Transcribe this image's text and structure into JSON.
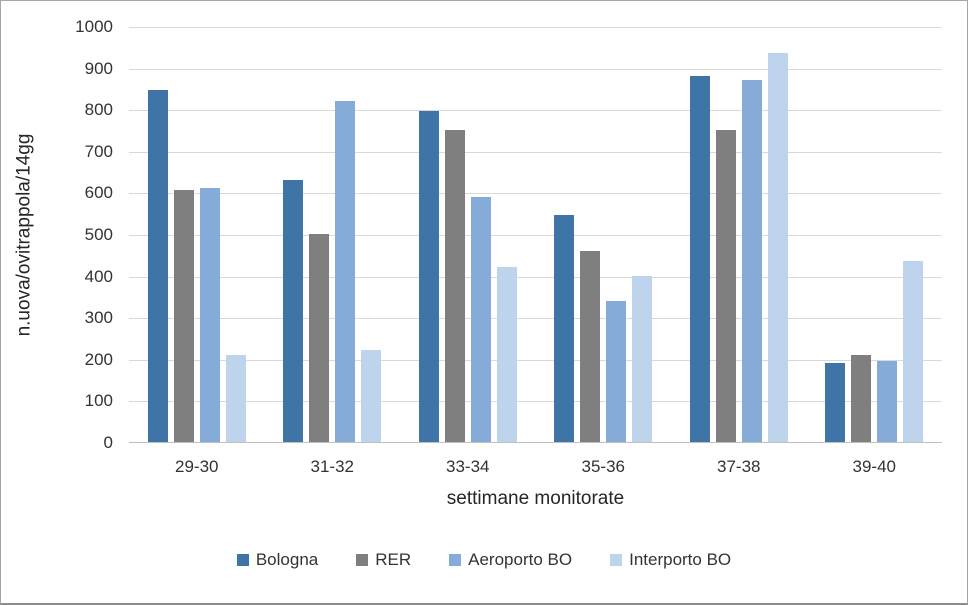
{
  "chart_data": {
    "type": "bar",
    "title": "",
    "xlabel": "settimane monitorate",
    "ylabel": "n.uova/ovitrappola/14gg",
    "categories": [
      "29-30",
      "31-32",
      "33-34",
      "35-36",
      "37-38",
      "39-40"
    ],
    "series": [
      {
        "name": "Bologna",
        "color": "#3F74A6",
        "values": [
          845,
          630,
          795,
          545,
          880,
          190
        ]
      },
      {
        "name": "RER",
        "color": "#7F7F7F",
        "values": [
          605,
          500,
          750,
          460,
          750,
          210
        ]
      },
      {
        "name": "Aeroporto BO",
        "color": "#85ACD8",
        "values": [
          610,
          820,
          590,
          340,
          870,
          195
        ]
      },
      {
        "name": "Interporto BO",
        "color": "#BDD4EC",
        "values": [
          210,
          220,
          420,
          400,
          935,
          435
        ]
      }
    ],
    "ylim": [
      0,
      1000
    ],
    "yticks": [
      0,
      100,
      200,
      300,
      400,
      500,
      600,
      700,
      800,
      900,
      1000
    ],
    "grid": "horizontal",
    "legend_position": "bottom"
  },
  "style": {
    "gridline_color": "#D9D9D9",
    "baseline_color": "#BFBFBF",
    "frame_border_color": "#A6A6A6",
    "background": "#FFFFFF"
  }
}
